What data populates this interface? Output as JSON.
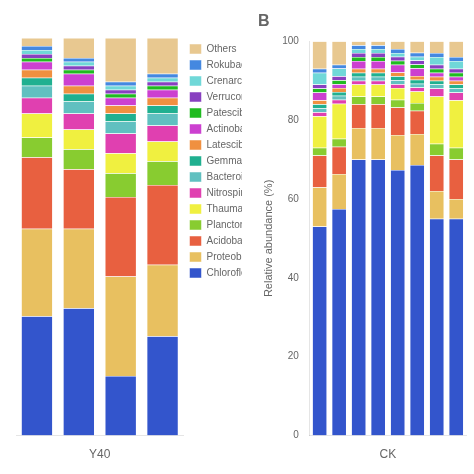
{
  "chart_data": [
    {
      "type": "bar",
      "stacked": true,
      "grid": false,
      "legend": "right",
      "tick_labels": false,
      "xlabel": "Y40",
      "categories": [
        null,
        null,
        null,
        null
      ],
      "ylim": [
        0,
        100
      ],
      "series": [
        {
          "name": "Chloroflexi",
          "color": "#3355cc",
          "values": [
            30,
            32,
            15,
            25
          ]
        },
        {
          "name": "Proteobacteria",
          "color": "#e8c060",
          "values": [
            22,
            20,
            25,
            18
          ]
        },
        {
          "name": "Acidobacteria",
          "color": "#e86040",
          "values": [
            18,
            15,
            20,
            20
          ]
        },
        {
          "name": "Planctomycetes",
          "color": "#88cc30",
          "values": [
            5,
            5,
            6,
            6
          ]
        },
        {
          "name": "Thaumarchaeota",
          "color": "#f0f040",
          "values": [
            6,
            5,
            5,
            5
          ]
        },
        {
          "name": "Nitrospirae",
          "color": "#e040b0",
          "values": [
            4,
            4,
            5,
            4
          ]
        },
        {
          "name": "Bacteroidetes",
          "color": "#60c0c0",
          "values": [
            3,
            3,
            3,
            3
          ]
        },
        {
          "name": "Gemmatimonadetes",
          "color": "#20b090",
          "values": [
            2,
            2,
            2,
            2
          ]
        },
        {
          "name": "Latescibacteria",
          "color": "#f09040",
          "values": [
            2,
            2,
            2,
            2
          ]
        },
        {
          "name": "Actinobacteria",
          "color": "#cc40d0",
          "values": [
            2,
            3,
            2,
            2
          ]
        },
        {
          "name": "Patescibacteria",
          "color": "#20bb20",
          "values": [
            1,
            1,
            1,
            1
          ]
        },
        {
          "name": "Verrucomicrobia",
          "color": "#8840c0",
          "values": [
            1,
            1,
            1,
            1
          ]
        },
        {
          "name": "Crenarchaeota",
          "color": "#70d8d8",
          "values": [
            1,
            1,
            1,
            1
          ]
        },
        {
          "name": "Rokubacteria",
          "color": "#4488e0",
          "values": [
            1,
            1,
            1,
            1
          ]
        },
        {
          "name": "Others",
          "color": "#e8c890",
          "values": [
            2,
            5,
            11,
            9
          ]
        }
      ]
    },
    {
      "type": "bar",
      "stacked": true,
      "grid": false,
      "tick_labels": "y",
      "title": "B",
      "xlabel": "CK",
      "ylabel": "Relative abundance (%)",
      "categories": [
        null,
        null,
        null,
        null,
        null,
        null,
        null,
        null
      ],
      "ylim": [
        0,
        100
      ],
      "yticks": [
        0,
        20,
        40,
        60,
        80,
        100
      ],
      "series": [
        {
          "name": "Chloroflexi",
          "color": "#3355cc",
          "values": [
            53,
            57.425743,
            70,
            70,
            67.326733,
            68.627451,
            55,
            55
          ]
        },
        {
          "name": "Proteobacteria",
          "color": "#e8c060",
          "values": [
            10,
            8.910891,
            8,
            8,
            8.910891,
            7.843137,
            7,
            5
          ]
        },
        {
          "name": "Acidobacteria",
          "color": "#e86040",
          "values": [
            8,
            6.930693,
            6,
            6,
            6.930693,
            5.882353,
            9,
            10
          ]
        },
        {
          "name": "Planctomycetes",
          "color": "#88cc30",
          "values": [
            2,
            1.980198,
            2,
            2,
            1.980198,
            1.960784,
            3,
            3
          ]
        },
        {
          "name": "Thaumarchaeota",
          "color": "#f0f040",
          "values": [
            8,
            8.910891,
            3,
            3,
            2.970297,
            2.941176,
            12,
            12
          ]
        },
        {
          "name": "Nitrospirae",
          "color": "#e040b0",
          "values": [
            1,
            0.990099,
            1,
            1,
            0.990099,
            0.980392,
            2,
            2
          ]
        },
        {
          "name": "Bacteroidetes",
          "color": "#60c0c0",
          "values": [
            1,
            0.990099,
            1,
            1,
            0.990099,
            0.980392,
            1,
            1
          ]
        },
        {
          "name": "Gemmatimonadetes",
          "color": "#20b090",
          "values": [
            1,
            0.990099,
            1,
            1,
            0.990099,
            0.980392,
            1,
            1
          ]
        },
        {
          "name": "Latescibacteria",
          "color": "#f09040",
          "values": [
            1,
            0.990099,
            1,
            1,
            0.990099,
            0.980392,
            1,
            1
          ]
        },
        {
          "name": "Actinobacteria",
          "color": "#cc40d0",
          "values": [
            2,
            0.990099,
            2,
            2,
            1.980198,
            1.960784,
            1,
            1
          ]
        },
        {
          "name": "Patescibacteria",
          "color": "#20bb20",
          "values": [
            1,
            0.990099,
            1,
            1,
            0.990099,
            0.980392,
            1,
            1
          ]
        },
        {
          "name": "Verrucomicrobia",
          "color": "#8840c0",
          "values": [
            1,
            0.990099,
            1,
            1,
            0.990099,
            0.980392,
            1,
            1
          ]
        },
        {
          "name": "Crenarchaeota",
          "color": "#70d8d8",
          "values": [
            3,
            1.980198,
            1,
            1,
            0.990099,
            0.980392,
            2,
            2
          ]
        },
        {
          "name": "Rokubacteria",
          "color": "#4488e0",
          "values": [
            1,
            0.990099,
            1,
            1,
            0.990099,
            0.980392,
            1,
            1
          ]
        },
        {
          "name": "Others",
          "color": "#e8c890",
          "values": [
            7,
            5.940594,
            1,
            1,
            1.980198,
            2.941176,
            3,
            4
          ]
        }
      ]
    }
  ]
}
